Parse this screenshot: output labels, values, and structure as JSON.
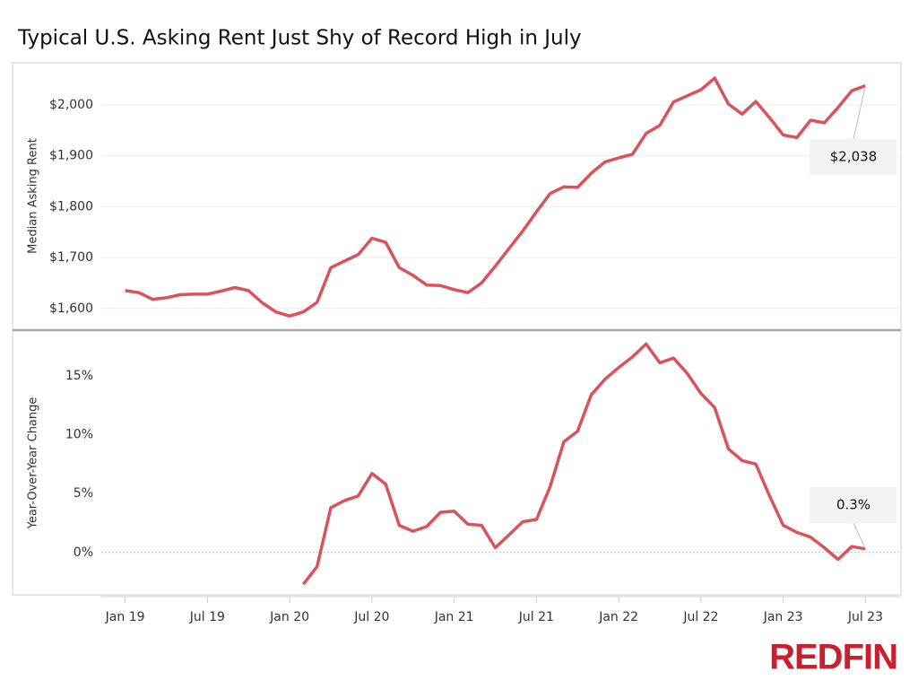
{
  "title": "Typical U.S. Asking Rent Just Shy of Record High in July",
  "logo": "REDFIN",
  "chart_data": [
    {
      "type": "line",
      "y_label": "Median Asking Rent",
      "x": [
        "2019-01",
        "2019-02",
        "2019-03",
        "2019-04",
        "2019-05",
        "2019-06",
        "2019-07",
        "2019-08",
        "2019-09",
        "2019-10",
        "2019-11",
        "2019-12",
        "2020-01",
        "2020-02",
        "2020-03",
        "2020-04",
        "2020-05",
        "2020-06",
        "2020-07",
        "2020-08",
        "2020-09",
        "2020-10",
        "2020-11",
        "2020-12",
        "2021-01",
        "2021-02",
        "2021-03",
        "2021-04",
        "2021-05",
        "2021-06",
        "2021-07",
        "2021-08",
        "2021-09",
        "2021-10",
        "2021-11",
        "2021-12",
        "2022-01",
        "2022-02",
        "2022-03",
        "2022-04",
        "2022-05",
        "2022-06",
        "2022-07",
        "2022-08",
        "2022-09",
        "2022-10",
        "2022-11",
        "2022-12",
        "2023-01",
        "2023-02",
        "2023-03",
        "2023-04",
        "2023-05",
        "2023-06",
        "2023-07"
      ],
      "series": [
        {
          "name": "Median Asking Rent",
          "color": "#d9545a",
          "values": [
            1635,
            1631,
            1618,
            1621,
            1627,
            1628,
            1628,
            1634,
            1641,
            1635,
            1611,
            1593,
            1585,
            1593,
            1612,
            1680,
            1693,
            1706,
            1738,
            1730,
            1680,
            1665,
            1646,
            1645,
            1637,
            1631,
            1650,
            1683,
            1718,
            1752,
            1790,
            1826,
            1839,
            1838,
            1866,
            1888,
            1896,
            1903,
            1944,
            1960,
            2006,
            2018,
            2030,
            2053,
            2002,
            1982,
            2007,
            1975,
            1941,
            1936,
            1970,
            1965,
            1995,
            2028,
            2038
          ]
        }
      ],
      "annotation": {
        "x": "2023-07",
        "label": "$2,038"
      },
      "xlim": [
        "2018-11",
        "2023-09"
      ],
      "ylim": [
        1559,
        2083
      ],
      "yticks": [
        {
          "value": 1600,
          "label": "$1,600"
        },
        {
          "value": 1700,
          "label": "$1,700"
        },
        {
          "value": 1800,
          "label": "$1,800"
        },
        {
          "value": 1900,
          "label": "$1,900"
        },
        {
          "value": 2000,
          "label": "$2,000"
        }
      ],
      "grid": true
    },
    {
      "type": "line",
      "y_label": "Year-Over-Year Change",
      "x": [
        "2019-01",
        "2019-02",
        "2019-03",
        "2019-04",
        "2019-05",
        "2019-06",
        "2019-07",
        "2019-08",
        "2019-09",
        "2019-10",
        "2019-11",
        "2019-12",
        "2020-01",
        "2020-02",
        "2020-03",
        "2020-04",
        "2020-05",
        "2020-06",
        "2020-07",
        "2020-08",
        "2020-09",
        "2020-10",
        "2020-11",
        "2020-12",
        "2021-01",
        "2021-02",
        "2021-03",
        "2021-04",
        "2021-05",
        "2021-06",
        "2021-07",
        "2021-08",
        "2021-09",
        "2021-10",
        "2021-11",
        "2021-12",
        "2022-01",
        "2022-02",
        "2022-03",
        "2022-04",
        "2022-05",
        "2022-06",
        "2022-07",
        "2022-08",
        "2022-09",
        "2022-10",
        "2022-11",
        "2022-12",
        "2023-01",
        "2023-02",
        "2023-03",
        "2023-04",
        "2023-05",
        "2023-06",
        "2023-07"
      ],
      "series": [
        {
          "name": "Year-Over-Year Change",
          "color": "#d9545a",
          "values": [
            null,
            null,
            null,
            null,
            null,
            null,
            null,
            null,
            null,
            null,
            null,
            null,
            null,
            -2.7,
            -1.2,
            3.8,
            4.4,
            4.8,
            6.7,
            5.8,
            2.3,
            1.8,
            2.2,
            3.4,
            3.5,
            2.4,
            2.3,
            0.4,
            1.5,
            2.6,
            2.8,
            5.6,
            9.4,
            10.3,
            13.4,
            14.7,
            15.7,
            16.6,
            17.7,
            16.1,
            16.5,
            15.2,
            13.5,
            12.3,
            8.8,
            7.8,
            7.5,
            4.8,
            2.3,
            1.7,
            1.3,
            0.4,
            -0.6,
            0.5,
            0.3
          ]
        }
      ],
      "annotation": {
        "x": "2023-07",
        "label": "0.3%"
      },
      "xlim": [
        "2018-11",
        "2023-09"
      ],
      "ylim": [
        -3.6,
        18.8
      ],
      "yticks": [
        {
          "value": 0,
          "label": "0%"
        },
        {
          "value": 5,
          "label": "5%"
        },
        {
          "value": 10,
          "label": "10%"
        },
        {
          "value": 15,
          "label": "15%"
        }
      ],
      "zero_line": true,
      "xticks": [
        {
          "value": "2019-01",
          "label": "Jan 19"
        },
        {
          "value": "2019-07",
          "label": "Jul 19"
        },
        {
          "value": "2020-01",
          "label": "Jan 20"
        },
        {
          "value": "2020-07",
          "label": "Jul 20"
        },
        {
          "value": "2021-01",
          "label": "Jan 21"
        },
        {
          "value": "2021-07",
          "label": "Jul 21"
        },
        {
          "value": "2022-01",
          "label": "Jan 22"
        },
        {
          "value": "2022-07",
          "label": "Jul 22"
        },
        {
          "value": "2023-01",
          "label": "Jan 23"
        },
        {
          "value": "2023-07",
          "label": "Jul 23"
        }
      ]
    }
  ]
}
